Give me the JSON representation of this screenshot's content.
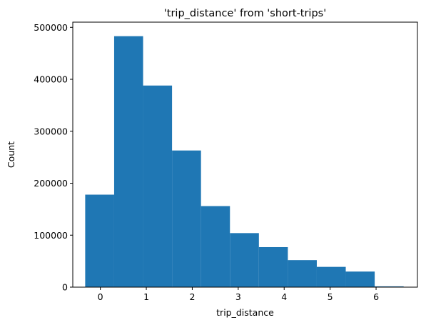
{
  "chart_data": {
    "type": "bar",
    "subtype": "histogram",
    "title": "'trip_distance' from 'short-trips'",
    "xlabel": "trip_distance",
    "ylabel": "Count",
    "xlim": [
      -0.6,
      6.9
    ],
    "ylim": [
      0,
      510000
    ],
    "bin_edges": [
      -0.33,
      0.3,
      0.93,
      1.56,
      2.19,
      2.82,
      3.45,
      4.08,
      4.71,
      5.34,
      5.97,
      6.6
    ],
    "values": [
      178000,
      483000,
      388000,
      263000,
      156000,
      104000,
      77000,
      52000,
      39000,
      30000,
      1500
    ],
    "x_ticks": [
      0,
      1,
      2,
      3,
      4,
      5,
      6
    ],
    "y_ticks": [
      0,
      100000,
      200000,
      300000,
      400000,
      500000
    ],
    "bar_color": "#1f77b4",
    "grid": false,
    "legend": "none"
  }
}
